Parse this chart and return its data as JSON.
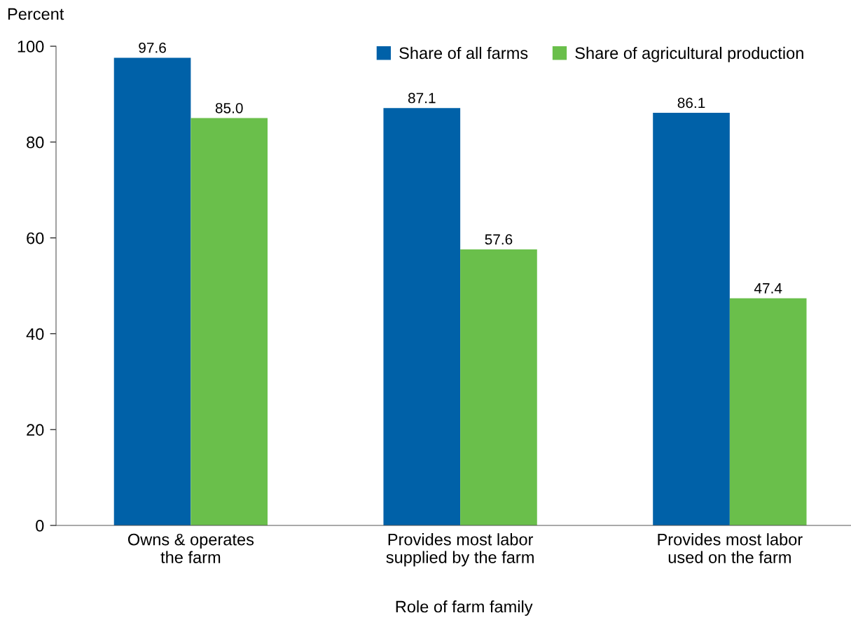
{
  "chart_data": {
    "type": "bar",
    "ylabel": "Percent",
    "xlabel": "Role of farm family",
    "categories": [
      "Owns & operates\nthe farm",
      "Provides most labor\nsupplied by the farm",
      "Provides most labor\nused on the farm"
    ],
    "series": [
      {
        "name": "Share of all farms",
        "color": "#0061a8",
        "values": [
          97.6,
          87.1,
          86.1
        ],
        "value_labels": [
          "97.6",
          "87.1",
          "86.1"
        ]
      },
      {
        "name": "Share of agricultural production",
        "color": "#6abf4b",
        "values": [
          85.0,
          57.6,
          47.4
        ],
        "value_labels": [
          "85.0",
          "57.6",
          "47.4"
        ]
      }
    ],
    "ylim": [
      0,
      100
    ],
    "yticks": [
      0,
      20,
      40,
      60,
      80,
      100
    ],
    "grid": false,
    "legend": "top right"
  }
}
